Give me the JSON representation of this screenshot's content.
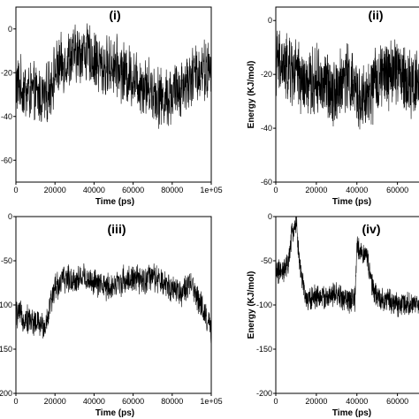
{
  "chart_data": [
    {
      "type": "line",
      "panel_label": "(i)",
      "xlabel": "Time (ps)",
      "ylabel": "",
      "xlim": [
        0,
        100000
      ],
      "ylim": [
        -70,
        10
      ],
      "x_ticks": [
        0,
        20000,
        40000,
        60000,
        80000,
        100000
      ],
      "x_tick_labels": [
        "0",
        "20000",
        "40000",
        "60000",
        "80000",
        "1e+05"
      ],
      "y_ticks": [
        0,
        -20,
        -40,
        -60
      ],
      "y_tick_labels": [
        "0",
        "-20",
        "-40",
        "-60"
      ],
      "series": [
        {
          "x": [
            0,
            5000,
            10000,
            15000,
            20000,
            25000,
            30000,
            35000,
            40000,
            45000,
            50000,
            55000,
            60000,
            65000,
            70000,
            75000,
            80000,
            85000,
            90000,
            95000,
            100000
          ],
          "y": [
            -25,
            -28,
            -30,
            -32,
            -20,
            -15,
            -12,
            -10,
            -14,
            -18,
            -16,
            -20,
            -22,
            -25,
            -28,
            -32,
            -30,
            -26,
            -22,
            -18,
            -20
          ],
          "noise": 12
        }
      ]
    },
    {
      "type": "line",
      "panel_label": "(ii)",
      "xlabel": "Time (ps)",
      "ylabel": "Energy (KJ/mol)",
      "xlim": [
        0,
        75000
      ],
      "ylim": [
        -60,
        5
      ],
      "x_ticks": [
        0,
        20000,
        40000,
        60000
      ],
      "x_tick_labels": [
        "0",
        "20000",
        "40000",
        "60000"
      ],
      "y_ticks": [
        0,
        -20,
        -40,
        -60
      ],
      "y_tick_labels": [
        "0",
        "-20",
        "-40",
        "-60"
      ],
      "series": [
        {
          "x": [
            0,
            5000,
            10000,
            15000,
            20000,
            25000,
            30000,
            35000,
            40000,
            45000,
            50000,
            55000,
            60000,
            65000,
            70000,
            75000
          ],
          "y": [
            -15,
            -18,
            -20,
            -25,
            -22,
            -24,
            -26,
            -20,
            -28,
            -30,
            -22,
            -20,
            -18,
            -24,
            -22,
            -20
          ],
          "noise": 11
        }
      ]
    },
    {
      "type": "line",
      "panel_label": "(iii)",
      "xlabel": "Time (ps)",
      "ylabel": "",
      "xlim": [
        0,
        100000
      ],
      "ylim": [
        -200,
        0
      ],
      "x_ticks": [
        0,
        20000,
        40000,
        60000,
        80000,
        100000
      ],
      "x_tick_labels": [
        "0",
        "20000",
        "40000",
        "60000",
        "80000",
        "1e+05"
      ],
      "y_ticks": [
        0,
        -50,
        -100,
        -150,
        -200
      ],
      "y_tick_labels": [
        "0",
        "-50",
        "-100",
        "-150",
        "-200"
      ],
      "series": [
        {
          "x": [
            0,
            5000,
            10000,
            15000,
            18000,
            20000,
            25000,
            30000,
            35000,
            40000,
            45000,
            50000,
            55000,
            60000,
            65000,
            70000,
            75000,
            80000,
            85000,
            90000,
            95000,
            100000
          ],
          "y": [
            -110,
            -115,
            -120,
            -125,
            -95,
            -80,
            -70,
            -72,
            -68,
            -75,
            -80,
            -78,
            -72,
            -70,
            -74,
            -68,
            -76,
            -80,
            -85,
            -78,
            -100,
            -130
          ],
          "noise": 14
        }
      ]
    },
    {
      "type": "line",
      "panel_label": "(iv)",
      "xlabel": "Time (ps)",
      "ylabel": "Energy (KJ/mol)",
      "xlim": [
        0,
        75000
      ],
      "ylim": [
        -200,
        0
      ],
      "x_ticks": [
        0,
        20000,
        40000,
        60000
      ],
      "x_tick_labels": [
        "0",
        "20000",
        "40000",
        "60000"
      ],
      "y_ticks": [
        0,
        -50,
        -100,
        -150,
        -200
      ],
      "y_tick_labels": [
        "0",
        "-50",
        "-100",
        "-150",
        "-200"
      ],
      "series": [
        {
          "x": [
            0,
            3000,
            6000,
            8000,
            10000,
            12000,
            15000,
            20000,
            25000,
            30000,
            35000,
            39000,
            40000,
            42000,
            45000,
            48000,
            50000,
            55000,
            60000,
            65000,
            70000,
            75000
          ],
          "y": [
            -60,
            -65,
            -55,
            -20,
            -5,
            -60,
            -95,
            -90,
            -92,
            -88,
            -95,
            -95,
            -35,
            -40,
            -45,
            -85,
            -90,
            -95,
            -100,
            -98,
            -102,
            -100
          ],
          "noise": 12
        }
      ]
    }
  ]
}
